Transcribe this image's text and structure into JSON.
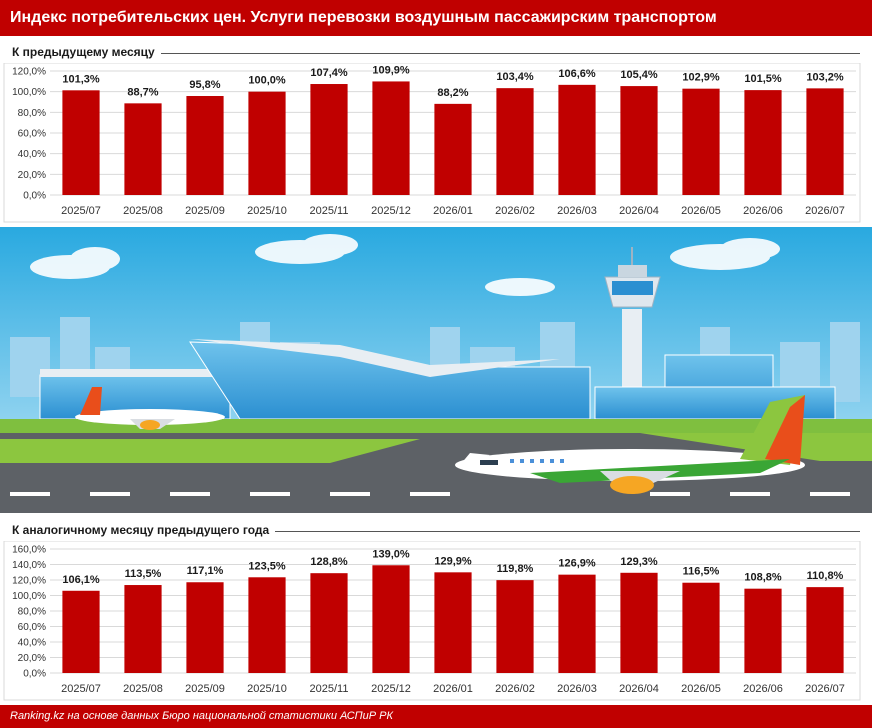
{
  "title": "Индекс потребительских цен. Услуги перевозки воздушным пассажирским транспортом",
  "footer": "Ranking.kz на основе данных Бюро национальной статистики АСПиР РК",
  "colors": {
    "accent": "#c00000",
    "bar": "#c00000"
  },
  "chart_data": [
    {
      "type": "bar",
      "title": "К предыдущему месяцу",
      "categories": [
        "2025/07",
        "2025/08",
        "2025/09",
        "2025/10",
        "2025/11",
        "2025/12",
        "2026/01",
        "2026/02",
        "2026/03",
        "2026/04",
        "2026/05",
        "2026/06",
        "2026/07"
      ],
      "values": [
        101.3,
        88.7,
        95.8,
        100.0,
        107.4,
        109.9,
        88.2,
        103.4,
        106.6,
        105.4,
        102.9,
        101.5,
        103.2
      ],
      "value_labels": [
        "101,3%",
        "88,7%",
        "95,8%",
        "100,0%",
        "107,4%",
        "109,9%",
        "88,2%",
        "103,4%",
        "106,6%",
        "105,4%",
        "102,9%",
        "101,5%",
        "103,2%"
      ],
      "ylim": [
        0,
        120
      ],
      "yticks": [
        0,
        20,
        40,
        60,
        80,
        100,
        120
      ],
      "ytick_labels": [
        "0,0%",
        "20,0%",
        "40,0%",
        "60,0%",
        "80,0%",
        "100,0%",
        "120,0%"
      ],
      "grid": true,
      "xlabel": "",
      "ylabel": ""
    },
    {
      "type": "bar",
      "title": "К аналогичному месяцу предыдущего года",
      "categories": [
        "2025/07",
        "2025/08",
        "2025/09",
        "2025/10",
        "2025/11",
        "2025/12",
        "2026/01",
        "2026/02",
        "2026/03",
        "2026/04",
        "2026/05",
        "2026/06",
        "2026/07"
      ],
      "values": [
        106.1,
        113.5,
        117.1,
        123.5,
        128.8,
        139.0,
        129.9,
        119.8,
        126.9,
        129.3,
        116.5,
        108.8,
        110.8
      ],
      "value_labels": [
        "106,1%",
        "113,5%",
        "117,1%",
        "123,5%",
        "128,8%",
        "139,0%",
        "129,9%",
        "119,8%",
        "126,9%",
        "129,3%",
        "116,5%",
        "108,8%",
        "110,8%"
      ],
      "ylim": [
        0,
        160
      ],
      "yticks": [
        0,
        20,
        40,
        60,
        80,
        100,
        120,
        140,
        160
      ],
      "ytick_labels": [
        "0,0%",
        "20,0%",
        "40,0%",
        "60,0%",
        "80,0%",
        "100,0%",
        "120,0%",
        "140,0%",
        "160,0%"
      ],
      "grid": true,
      "xlabel": "",
      "ylabel": ""
    }
  ]
}
